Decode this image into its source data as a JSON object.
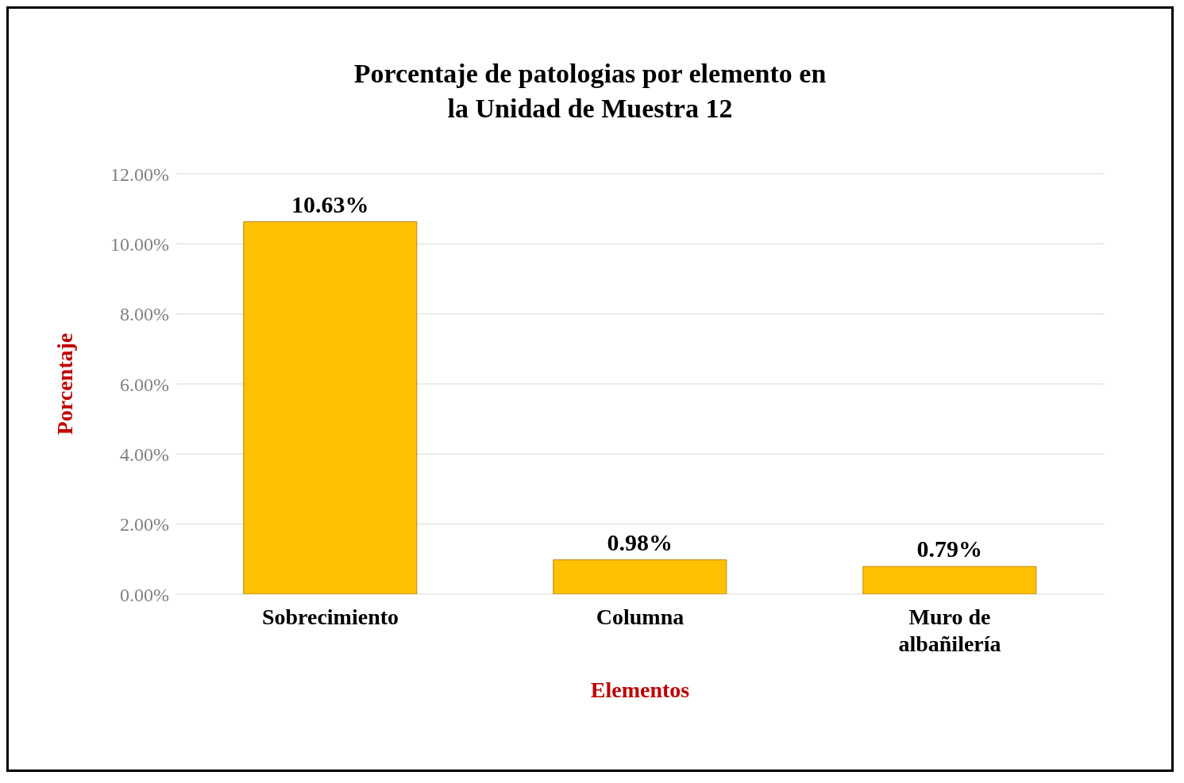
{
  "chart_data": {
    "type": "bar",
    "title": "Porcentaje de patologias por elemento en\nla Unidad de Muestra 12",
    "xlabel": "Elementos",
    "ylabel": "Porcentaje",
    "categories": [
      "Sobrecimiento",
      "Columna",
      "Muro de albañilería"
    ],
    "values": [
      10.63,
      0.98,
      0.79
    ],
    "color": "#ffc000",
    "value_labels": [
      "10.63%",
      "0.98%",
      "0.79%"
    ],
    "ylim": [
      0,
      12
    ],
    "yticks": [
      {
        "value": 0,
        "label": "0.00%"
      },
      {
        "value": 2,
        "label": "2.00%"
      },
      {
        "value": 4,
        "label": "4.00%"
      },
      {
        "value": 6,
        "label": "6.00%"
      },
      {
        "value": 8,
        "label": "8.00%"
      },
      {
        "value": 10,
        "label": "10.00%"
      },
      {
        "value": 12,
        "label": "12.00%"
      }
    ],
    "grid": "y",
    "legend": false
  }
}
